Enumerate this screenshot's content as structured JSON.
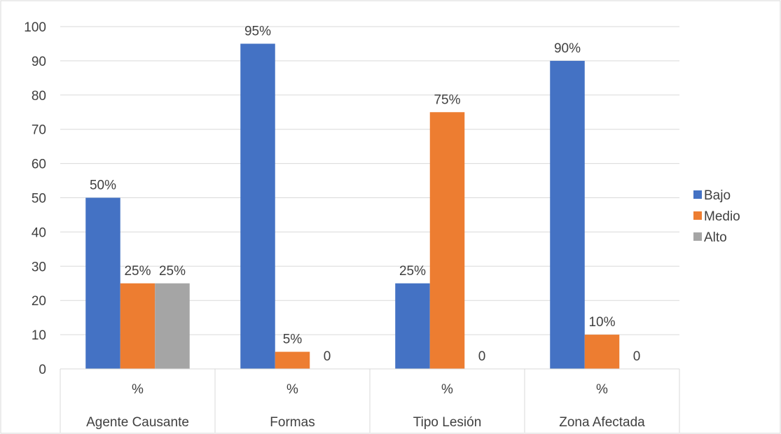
{
  "chart_data": {
    "type": "bar",
    "category_levels": {
      "inner": [
        "%",
        "%",
        "%",
        "%"
      ],
      "outer": [
        "Agente Causante",
        "Formas",
        "Tipo Lesión",
        "Zona Afectada"
      ]
    },
    "series": [
      {
        "name": "Bajo",
        "color": "#4472C4",
        "values": [
          50,
          95,
          25,
          90
        ],
        "labels": [
          "50%",
          "95%",
          "25%",
          "90%"
        ]
      },
      {
        "name": "Medio",
        "color": "#ED7D31",
        "values": [
          25,
          5,
          75,
          10
        ],
        "labels": [
          "25%",
          "5%",
          "75%",
          "10%"
        ]
      },
      {
        "name": "Alto",
        "color": "#A5A5A5",
        "values": [
          25,
          0,
          0,
          0
        ],
        "labels": [
          "25%",
          "0",
          "0",
          "0"
        ]
      }
    ],
    "ylim": [
      0,
      100
    ],
    "yticks": [
      0,
      10,
      20,
      30,
      40,
      50,
      60,
      70,
      80,
      90,
      100
    ],
    "grid": true,
    "legend": "right"
  }
}
